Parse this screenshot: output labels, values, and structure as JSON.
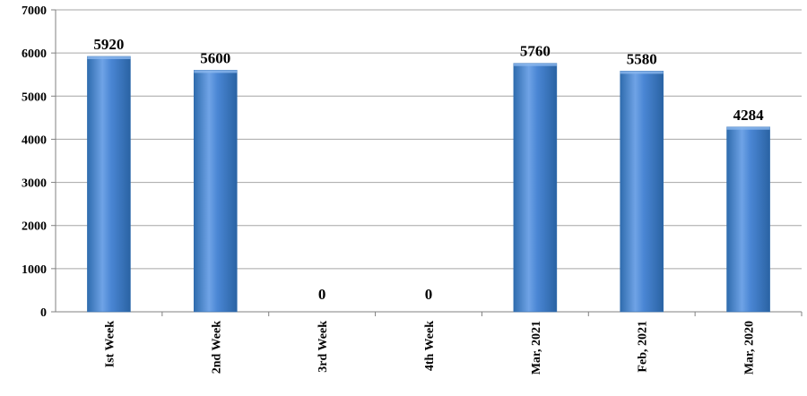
{
  "chart_data": {
    "type": "bar",
    "title": "",
    "xlabel": "",
    "ylabel": "",
    "categories": [
      "Ist Week",
      "2nd Week",
      "3rd Week",
      "4th Week",
      "Mar, 2021",
      "Feb, 2021",
      "Mar, 2020"
    ],
    "values": [
      5920,
      5600,
      0,
      0,
      5760,
      5580,
      4284
    ],
    "data_labels": [
      "5920",
      "5600",
      "0",
      "0",
      "5760",
      "5580",
      "4284"
    ],
    "ylim": [
      0,
      7000
    ],
    "yticks": [
      0,
      1000,
      2000,
      3000,
      4000,
      5000,
      6000,
      7000
    ],
    "ytick_labels": [
      "0",
      "1000",
      "2000",
      "3000",
      "4000",
      "5000",
      "6000",
      "7000"
    ],
    "grid": true,
    "legend": "none",
    "colors": {
      "bar_top": "#6fa3e6",
      "bar_mid": "#4a86d4",
      "bar_bottom": "#2f6cae",
      "gridline": "#a6a6a6",
      "axis": "#808080"
    }
  }
}
